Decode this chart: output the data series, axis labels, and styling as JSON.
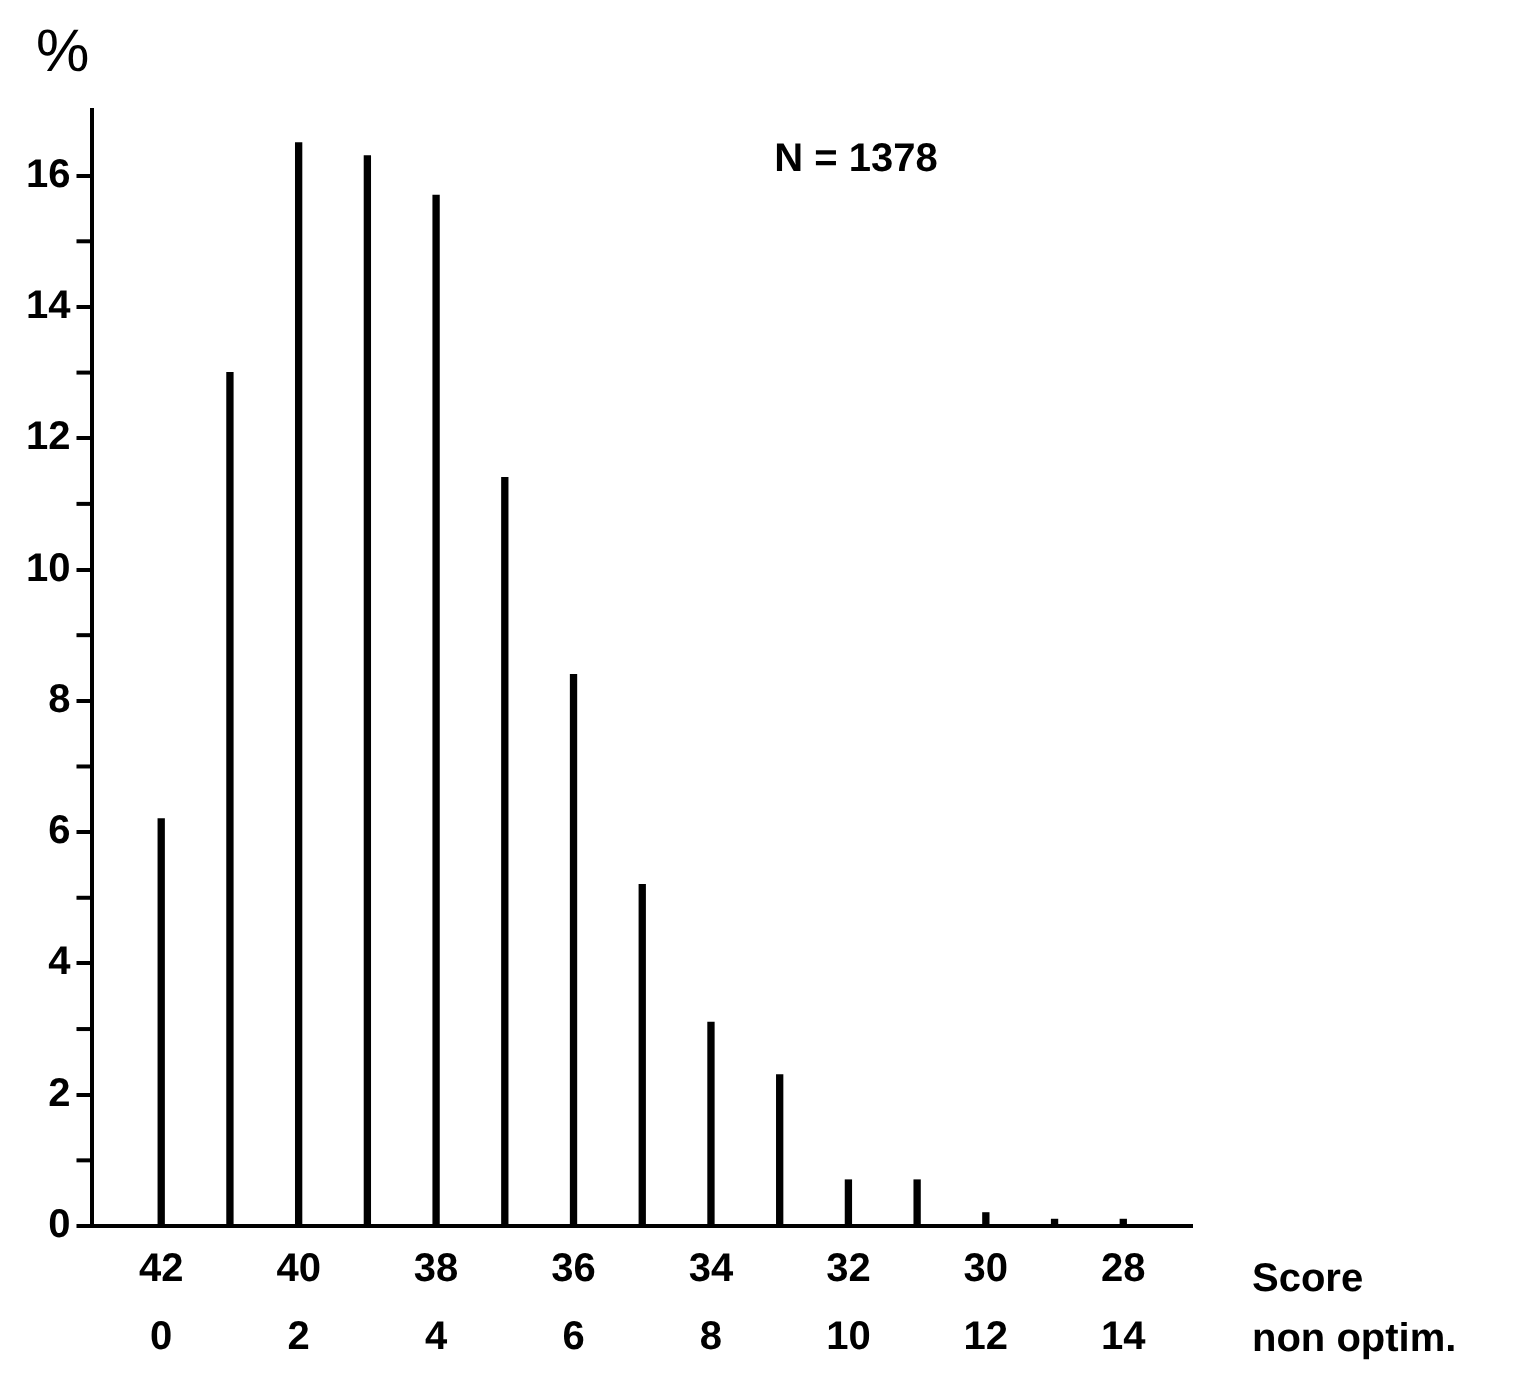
{
  "chart_data": {
    "type": "bar",
    "ylabel": "%",
    "xlabel": "non optim.",
    "x2label": "Score",
    "annotations": [
      "N = 1378"
    ],
    "x": [
      0,
      1,
      2,
      3,
      4,
      5,
      6,
      7,
      8,
      9,
      10,
      11,
      12,
      13,
      14
    ],
    "values": [
      6.2,
      13.0,
      16.5,
      16.3,
      15.7,
      11.4,
      8.4,
      5.2,
      3.1,
      2.3,
      0.7,
      0.7,
      0.2,
      0.1,
      0.1
    ],
    "color": "#000000",
    "xlim": [
      -1,
      15
    ],
    "xticks": [
      0,
      2,
      4,
      6,
      8,
      10,
      12,
      14
    ],
    "x2lim": [
      43,
      27
    ],
    "x2ticks": [
      42,
      40,
      38,
      36,
      34,
      32,
      30,
      28
    ],
    "ylim": [
      0,
      17
    ],
    "yticks": [
      0,
      {
        "value": 1,
        "label": null
      },
      2,
      {
        "value": 3,
        "label": null
      },
      4,
      {
        "value": 5,
        "label": null
      },
      6,
      {
        "value": 7,
        "label": null
      },
      8,
      {
        "value": 9,
        "label": null
      },
      10,
      {
        "value": 11,
        "label": null
      },
      12,
      {
        "value": 13,
        "label": null
      },
      14,
      {
        "value": 15,
        "label": null
      },
      16
    ],
    "grid": false,
    "legend": false
  }
}
